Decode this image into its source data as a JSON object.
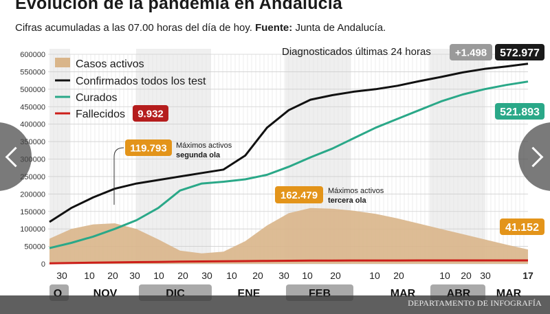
{
  "header": {
    "title": "Evolución de la pandemia en Andalucía",
    "subtitle_prefix": "Cifras acumuladas a las 07.00 horas del día de hoy. ",
    "source_label": "Fuente:",
    "source_value": " Junta de Andalucía."
  },
  "chart_data": {
    "type": "area",
    "title": "Evolución de la pandemia en Andalucía",
    "ylim": [
      0,
      600000
    ],
    "yticks": [
      "600000",
      "550000",
      "500000",
      "450000",
      "400000",
      "350000",
      "300000",
      "250000",
      "200000",
      "150000",
      "100000",
      "50000",
      "0"
    ],
    "x_day_ticks": [
      "30",
      "10",
      "20",
      "30",
      "10",
      "20",
      "30",
      "10",
      "20",
      "30",
      "10",
      "20",
      "30",
      "10",
      "20",
      "10",
      "20",
      "10",
      "20",
      "30",
      "17"
    ],
    "months": [
      {
        "label": "O",
        "shaded": true
      },
      {
        "label": "NOV",
        "shaded": false
      },
      {
        "label": "DIC",
        "shaded": true
      },
      {
        "label": "ENE",
        "shaded": false
      },
      {
        "label": "FEB",
        "shaded": true
      },
      {
        "label": "MAR",
        "shaded": false
      },
      {
        "label": "ABR",
        "shaded": true
      },
      {
        "label": "MAR",
        "shaded": false
      }
    ],
    "grid": true,
    "legend_position": "top-left",
    "series": [
      {
        "name": "Casos activos",
        "type": "area",
        "color": "#d9b58a",
        "values": [
          72000,
          100000,
          113000,
          116000,
          100000,
          70000,
          38000,
          30000,
          35000,
          65000,
          110000,
          145000,
          160000,
          158000,
          152000,
          143000,
          130000,
          115000,
          100000,
          85000,
          70000,
          55000,
          41152
        ]
      },
      {
        "name": "Confirmados todos los test",
        "type": "line",
        "color": "#111111",
        "values": [
          120000,
          160000,
          190000,
          215000,
          230000,
          240000,
          250000,
          260000,
          270000,
          310000,
          390000,
          440000,
          470000,
          483000,
          493000,
          500000,
          510000,
          523000,
          535000,
          548000,
          558000,
          565000,
          572977
        ]
      },
      {
        "name": "Curados",
        "type": "line",
        "color": "#2aa888",
        "values": [
          45000,
          60000,
          78000,
          100000,
          125000,
          160000,
          210000,
          230000,
          235000,
          242000,
          255000,
          278000,
          305000,
          330000,
          360000,
          390000,
          415000,
          440000,
          465000,
          485000,
          500000,
          512000,
          521893
        ]
      },
      {
        "name": "Fallecidos",
        "type": "line",
        "color": "#cc1f1a",
        "values": [
          1500,
          2400,
          3300,
          4200,
          5000,
          5600,
          6200,
          6800,
          7300,
          7900,
          8400,
          8900,
          9200,
          9400,
          9550,
          9650,
          9720,
          9780,
          9830,
          9870,
          9900,
          9920,
          9932
        ]
      }
    ],
    "annotations": {
      "diagnosed_label": "Diagnosticados últimas 24 horas",
      "diagnosed_new": "+1.498",
      "confirmed_total": "572.977",
      "deaths_total": "9.932",
      "recovered_total": "521.893",
      "active_total": "41.152",
      "second_wave_value": "119.793",
      "second_wave_label_1": "Máximos activos",
      "second_wave_label_2": "segunda ola",
      "third_wave_value": "162.479",
      "third_wave_label_1": "Máximos activos",
      "third_wave_label_2": "tercera ola"
    },
    "colors": {
      "active_badge": "#e3941a",
      "recovered_badge": "#2aa888",
      "deaths_badge": "#b51d1d",
      "dark_badge": "#1a1a1a",
      "grey_badge": "#9a9a9a"
    }
  },
  "footer": {
    "credit": "DEPARTAMENTO DE INFOGRAFÍA"
  },
  "nav": {
    "prev_icon": "chevron-left-icon",
    "next_icon": "chevron-right-icon"
  }
}
